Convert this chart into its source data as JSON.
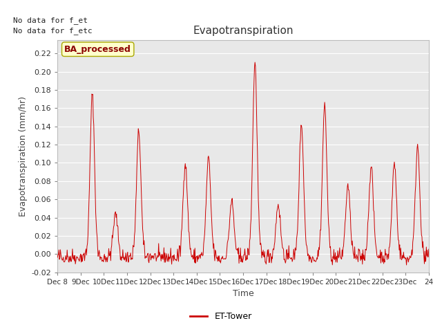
{
  "title": "Evapotranspiration",
  "ylabel": "Evapotranspiration (mm/hr)",
  "xlabel": "Time",
  "text_no_data": [
    "No data for f_et",
    "No data for f_etc"
  ],
  "legend_label": "ET-Tower",
  "legend_box_label": "BA_processed",
  "xlim_start": 8,
  "xlim_end": 24,
  "ylim": [
    -0.02,
    0.235
  ],
  "yticks": [
    -0.02,
    0.0,
    0.02,
    0.04,
    0.06,
    0.08,
    0.1,
    0.12,
    0.14,
    0.16,
    0.18,
    0.2,
    0.22
  ],
  "xtick_positions": [
    8,
    9,
    10,
    11,
    12,
    13,
    14,
    15,
    16,
    17,
    18,
    19,
    20,
    21,
    22,
    23,
    24
  ],
  "xtick_labels": [
    "Dec 8",
    "9Dec",
    "10Dec",
    "11Dec",
    "12Dec",
    "13Dec",
    "14Dec",
    "15Dec",
    "16Dec",
    "17Dec",
    "18Dec",
    "19Dec",
    "20Dec",
    "21Dec",
    "22Dec",
    "23Dec",
    "24"
  ],
  "line_color": "#cc0000",
  "background_color": "#e8e8e8",
  "grid_color": "#ffffff",
  "fig_background": "#ffffff",
  "legend_box_color": "#ffffcc",
  "legend_box_edge": "#aaa800",
  "peaks": [
    0.0,
    0.175,
    0.044,
    0.135,
    0.0,
    0.1,
    0.105,
    0.058,
    0.21,
    0.055,
    0.143,
    0.163,
    0.075,
    0.096,
    0.1,
    0.119
  ]
}
